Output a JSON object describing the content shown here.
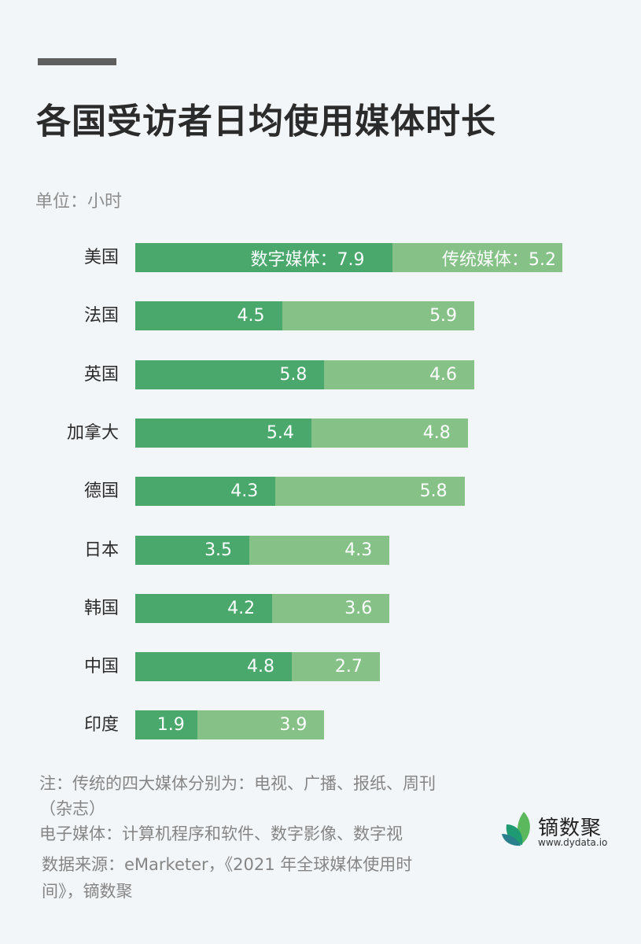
{
  "header": {
    "title": "各国受访者日均使用媒体时长",
    "unit": "单位：小时"
  },
  "colors": {
    "background": "#f2f6f9",
    "digital": "#4aa86d",
    "traditional": "#86c288",
    "title": "#2b2b2b",
    "muted_text": "#858585",
    "accent_bar": "#5f5f5f"
  },
  "chart_data": {
    "type": "bar",
    "orientation": "horizontal",
    "stacked": true,
    "title": "各国受访者日均使用媒体时长",
    "unit": "小时",
    "xlabel": "",
    "ylabel": "",
    "grid": false,
    "legend": "inline labels on first bar",
    "categories": [
      "美国",
      "法国",
      "英国",
      "加拿大",
      "德国",
      "日本",
      "韩国",
      "中国",
      "印度"
    ],
    "series": [
      {
        "name": "数字媒体",
        "color": "#4aa86d",
        "values": [
          7.9,
          4.5,
          5.8,
          5.4,
          4.3,
          3.5,
          4.2,
          4.8,
          1.9
        ]
      },
      {
        "name": "传统媒体",
        "color": "#86c288",
        "values": [
          5.2,
          5.9,
          4.6,
          4.8,
          5.8,
          4.3,
          3.6,
          2.7,
          3.9
        ]
      }
    ]
  },
  "rows": [
    {
      "country": "美国",
      "digital": 7.9,
      "traditional": 5.2,
      "digital_label": "数字媒体：7.9",
      "traditional_label": "传统媒体：5.2"
    },
    {
      "country": "法国",
      "digital": 4.5,
      "traditional": 5.9,
      "digital_label": "4.5",
      "traditional_label": "5.9"
    },
    {
      "country": "英国",
      "digital": 5.8,
      "traditional": 4.6,
      "digital_label": "5.8",
      "traditional_label": "4.6"
    },
    {
      "country": "加拿大",
      "digital": 5.4,
      "traditional": 4.8,
      "digital_label": "5.4",
      "traditional_label": "4.8"
    },
    {
      "country": "德国",
      "digital": 4.3,
      "traditional": 5.8,
      "digital_label": "4.3",
      "traditional_label": "5.8"
    },
    {
      "country": "日本",
      "digital": 3.5,
      "traditional": 4.3,
      "digital_label": "3.5",
      "traditional_label": "4.3"
    },
    {
      "country": "韩国",
      "digital": 4.2,
      "traditional": 3.6,
      "digital_label": "4.2",
      "traditional_label": "3.6"
    },
    {
      "country": "中国",
      "digital": 4.8,
      "traditional": 2.7,
      "digital_label": "4.8",
      "traditional_label": "2.7"
    },
    {
      "country": "印度",
      "digital": 1.9,
      "traditional": 3.9,
      "digital_label": "1.9",
      "traditional_label": "3.9"
    }
  ],
  "footer": {
    "note_line1": "注：传统的四大媒体分别为：电视、广播、报纸、周刊（杂志）",
    "note_line2": "电子媒体：计算机程序和软件、数字影像、数字视",
    "source": "数据来源：eMarketer，《2021 年全球媒体使用时间》，镝数聚"
  },
  "logo": {
    "name": "镝数聚",
    "url": "www.dydata.io"
  }
}
